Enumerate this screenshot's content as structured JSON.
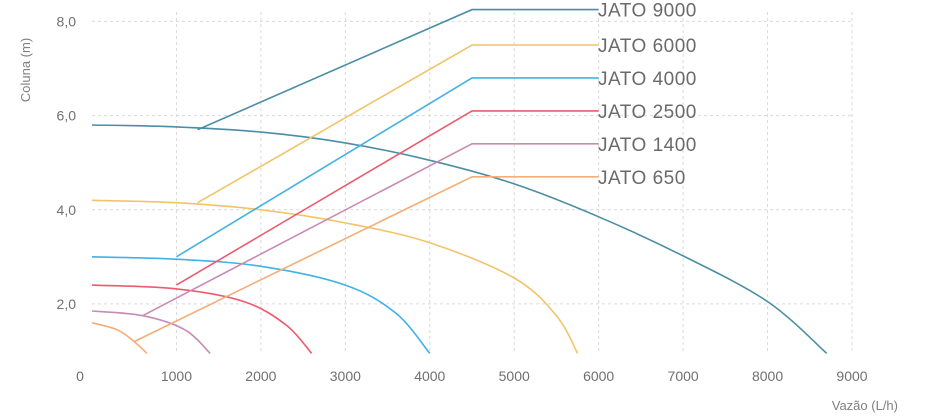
{
  "chart_data": {
    "type": "line",
    "xlabel": "Vazão (L/h)",
    "ylabel": "Coluna (m)",
    "xlim": [
      0,
      9000
    ],
    "ylim": [
      1.0,
      8.2
    ],
    "x_ticks": [
      "0",
      "1000",
      "2000",
      "3000",
      "4000",
      "5000",
      "6000",
      "7000",
      "8000",
      "9000"
    ],
    "x_tick_values": [
      0,
      1000,
      2000,
      3000,
      4000,
      5000,
      6000,
      7000,
      8000,
      9000
    ],
    "y_ticks": [
      "2,0",
      "4,0",
      "6,0",
      "8,0"
    ],
    "y_tick_values": [
      2,
      4,
      6,
      8
    ],
    "grid": true,
    "legend_placement": "right",
    "series": [
      {
        "name": "JATO 9000",
        "color": "#4a8ea6",
        "marker_line": [
          [
            1250,
            5.7
          ],
          [
            4500,
            8.25
          ],
          [
            6000,
            8.25
          ]
        ],
        "curve": [
          [
            0,
            5.8
          ],
          [
            1000,
            5.76
          ],
          [
            2000,
            5.65
          ],
          [
            3000,
            5.42
          ],
          [
            4000,
            5.05
          ],
          [
            5000,
            4.55
          ],
          [
            6000,
            3.85
          ],
          [
            7000,
            3.02
          ],
          [
            8000,
            2.05
          ],
          [
            8700,
            0.95
          ]
        ]
      },
      {
        "name": "JATO 6000",
        "color": "#f2c46a",
        "marker_line": [
          [
            1250,
            4.15
          ],
          [
            4500,
            7.5
          ],
          [
            6000,
            7.5
          ]
        ],
        "curve": [
          [
            0,
            4.2
          ],
          [
            1000,
            4.15
          ],
          [
            2000,
            4.0
          ],
          [
            3000,
            3.72
          ],
          [
            4000,
            3.3
          ],
          [
            5000,
            2.55
          ],
          [
            5500,
            1.75
          ],
          [
            5750,
            0.95
          ]
        ]
      },
      {
        "name": "JATO 4000",
        "color": "#41b2e3",
        "marker_line": [
          [
            1000,
            3.0
          ],
          [
            4500,
            6.8
          ],
          [
            6000,
            6.8
          ]
        ],
        "curve": [
          [
            0,
            3.0
          ],
          [
            1000,
            2.95
          ],
          [
            2000,
            2.8
          ],
          [
            3000,
            2.4
          ],
          [
            3600,
            1.8
          ],
          [
            4000,
            0.95
          ]
        ]
      },
      {
        "name": "JATO 2500",
        "color": "#ec5a6e",
        "marker_line": [
          [
            1000,
            2.4
          ],
          [
            4500,
            6.1
          ],
          [
            6000,
            6.1
          ]
        ],
        "curve": [
          [
            0,
            2.4
          ],
          [
            1000,
            2.32
          ],
          [
            1800,
            2.05
          ],
          [
            2300,
            1.55
          ],
          [
            2600,
            0.95
          ]
        ]
      },
      {
        "name": "JATO 1400",
        "color": "#c98bb4",
        "marker_line": [
          [
            600,
            1.75
          ],
          [
            4500,
            5.4
          ],
          [
            6000,
            5.4
          ]
        ],
        "curve": [
          [
            0,
            1.85
          ],
          [
            600,
            1.75
          ],
          [
            1100,
            1.45
          ],
          [
            1400,
            0.95
          ]
        ]
      },
      {
        "name": "JATO 650",
        "color": "#f5ad78",
        "marker_line": [
          [
            500,
            1.2
          ],
          [
            4500,
            4.7
          ],
          [
            6000,
            4.7
          ]
        ],
        "curve": [
          [
            0,
            1.6
          ],
          [
            300,
            1.45
          ],
          [
            500,
            1.2
          ],
          [
            650,
            0.95
          ]
        ]
      }
    ]
  }
}
